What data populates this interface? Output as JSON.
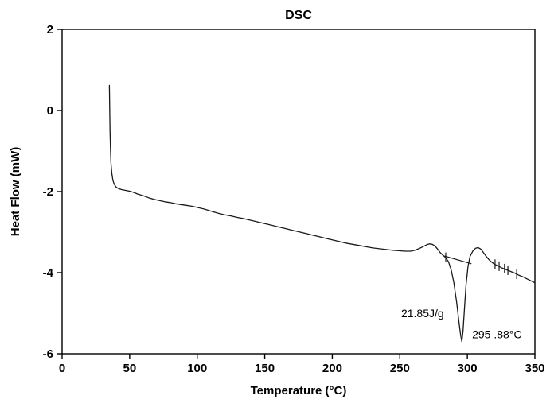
{
  "chart_data": {
    "type": "line",
    "title": "DSC",
    "xlabel": "Temperature (°C)",
    "ylabel": "Heat Flow (mW)",
    "xlim": [
      0,
      350
    ],
    "ylim": [
      -6,
      2
    ],
    "xticks": [
      0,
      50,
      100,
      150,
      200,
      250,
      300,
      350
    ],
    "yticks": [
      -6,
      -4,
      -2,
      0,
      2
    ],
    "grid": false,
    "legend": false,
    "colors": {
      "line": "#1a1a1a",
      "axis": "#000000",
      "text": "#000000",
      "background": "#ffffff"
    },
    "series": [
      {
        "name": "heat_flow",
        "points": [
          [
            35,
            0.62
          ],
          [
            35.2,
            0.2
          ],
          [
            35.5,
            -0.5
          ],
          [
            35.8,
            -0.95
          ],
          [
            36.2,
            -1.3
          ],
          [
            36.8,
            -1.55
          ],
          [
            37.6,
            -1.72
          ],
          [
            38.6,
            -1.82
          ],
          [
            40,
            -1.89
          ],
          [
            42,
            -1.93
          ],
          [
            44,
            -1.95
          ],
          [
            47,
            -1.97
          ],
          [
            50,
            -1.99
          ],
          [
            53,
            -2.02
          ],
          [
            56,
            -2.06
          ],
          [
            60,
            -2.1
          ],
          [
            64,
            -2.15
          ],
          [
            68,
            -2.19
          ],
          [
            72,
            -2.22
          ],
          [
            76,
            -2.25
          ],
          [
            80,
            -2.27
          ],
          [
            84,
            -2.3
          ],
          [
            88,
            -2.32
          ],
          [
            92,
            -2.34
          ],
          [
            96,
            -2.36
          ],
          [
            100,
            -2.39
          ],
          [
            105,
            -2.43
          ],
          [
            110,
            -2.48
          ],
          [
            115,
            -2.53
          ],
          [
            120,
            -2.57
          ],
          [
            125,
            -2.6
          ],
          [
            130,
            -2.64
          ],
          [
            135,
            -2.67
          ],
          [
            140,
            -2.71
          ],
          [
            145,
            -2.75
          ],
          [
            150,
            -2.79
          ],
          [
            155,
            -2.83
          ],
          [
            160,
            -2.87
          ],
          [
            165,
            -2.91
          ],
          [
            170,
            -2.95
          ],
          [
            175,
            -2.99
          ],
          [
            180,
            -3.03
          ],
          [
            185,
            -3.07
          ],
          [
            190,
            -3.11
          ],
          [
            195,
            -3.15
          ],
          [
            200,
            -3.19
          ],
          [
            205,
            -3.23
          ],
          [
            210,
            -3.27
          ],
          [
            215,
            -3.3
          ],
          [
            220,
            -3.33
          ],
          [
            225,
            -3.36
          ],
          [
            230,
            -3.39
          ],
          [
            235,
            -3.41
          ],
          [
            240,
            -3.43
          ],
          [
            245,
            -3.45
          ],
          [
            250,
            -3.46
          ],
          [
            254,
            -3.47
          ],
          [
            258,
            -3.47
          ],
          [
            261,
            -3.45
          ],
          [
            264,
            -3.41
          ],
          [
            267,
            -3.36
          ],
          [
            270,
            -3.31
          ],
          [
            272,
            -3.29
          ],
          [
            274,
            -3.3
          ],
          [
            276,
            -3.34
          ],
          [
            278,
            -3.42
          ],
          [
            280,
            -3.51
          ],
          [
            282,
            -3.57
          ],
          [
            284,
            -3.63
          ],
          [
            286,
            -3.73
          ],
          [
            288,
            -3.93
          ],
          [
            290,
            -4.25
          ],
          [
            292,
            -4.72
          ],
          [
            294,
            -5.28
          ],
          [
            295,
            -5.54
          ],
          [
            295.88,
            -5.7
          ],
          [
            296.8,
            -5.44
          ],
          [
            297.8,
            -4.92
          ],
          [
            299,
            -4.32
          ],
          [
            300.5,
            -3.84
          ],
          [
            302,
            -3.6
          ],
          [
            304,
            -3.47
          ],
          [
            306,
            -3.4
          ],
          [
            308,
            -3.38
          ],
          [
            310,
            -3.42
          ],
          [
            312,
            -3.51
          ],
          [
            314,
            -3.6
          ],
          [
            316,
            -3.68
          ],
          [
            318,
            -3.74
          ],
          [
            320,
            -3.79
          ],
          [
            323,
            -3.84
          ],
          [
            326,
            -3.89
          ],
          [
            329,
            -3.93
          ],
          [
            332,
            -3.97
          ],
          [
            335,
            -4.01
          ],
          [
            338,
            -4.06
          ],
          [
            341,
            -4.1
          ],
          [
            344,
            -4.15
          ],
          [
            347,
            -4.2
          ],
          [
            350,
            -4.25
          ]
        ]
      }
    ],
    "integration_baseline": {
      "x1": 283,
      "y1": -3.59,
      "x2": 303,
      "y2": -3.78
    },
    "cursor_marks": [
      [
        284,
        -3.62
      ],
      [
        320.5,
        -3.79
      ],
      [
        323.5,
        -3.84
      ],
      [
        327.5,
        -3.9
      ],
      [
        330,
        -3.94
      ],
      [
        336.5,
        -4.04
      ]
    ],
    "annotations": [
      {
        "id": "enthalpy",
        "text": "21.85J/g",
        "x": 251,
        "y": -5.1,
        "anchor": "start"
      },
      {
        "id": "peak-temp",
        "text": "295 .88°C",
        "x": 303.5,
        "y": -5.62,
        "anchor": "start"
      }
    ]
  }
}
